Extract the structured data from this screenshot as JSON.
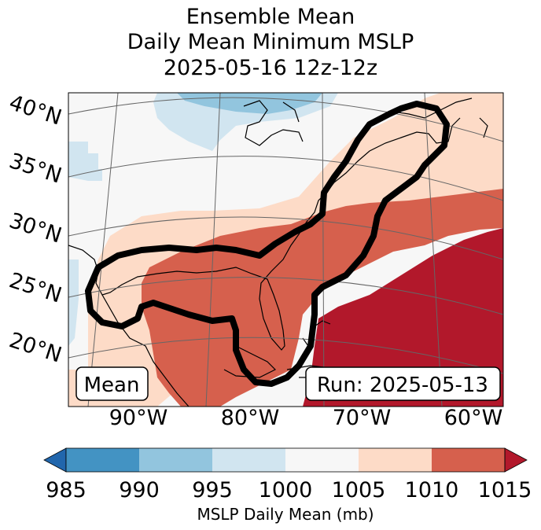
{
  "title": {
    "line1": "Ensemble Mean",
    "line2": "Daily Mean Minimum MSLP",
    "line3": "2025-05-16 12z-12z"
  },
  "map": {
    "lat_labels": [
      "40°N",
      "35°N",
      "30°N",
      "25°N",
      "20°N"
    ],
    "lon_labels": [
      "90°W",
      "80°W",
      "70°W",
      "60°W"
    ],
    "label_mean": "Mean",
    "label_run": "Run: 2025-05-13",
    "contour_icon": "bold-outline-contour"
  },
  "colorbar": {
    "label": "MSLP Daily Mean (mb)",
    "ticks": [
      "985",
      "990",
      "995",
      "1000",
      "1005",
      "1010",
      "1015"
    ],
    "colors": [
      "#2166ac",
      "#4393c3",
      "#92c5de",
      "#d1e5f0",
      "#f7f7f7",
      "#fddbc7",
      "#d6604d",
      "#b2182b"
    ]
  }
}
